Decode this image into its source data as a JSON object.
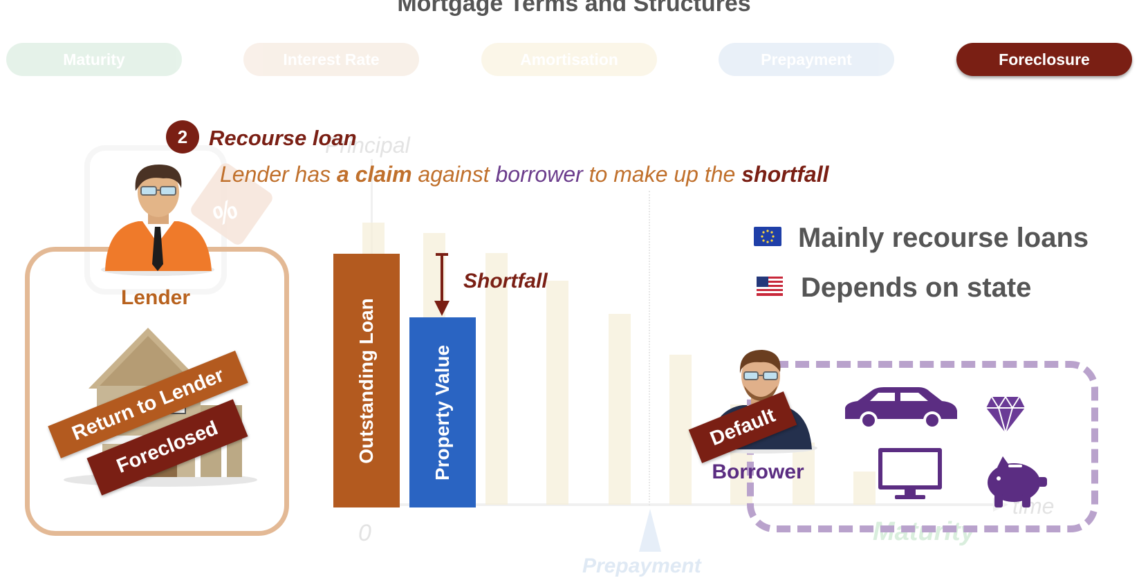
{
  "title": "Mortgage Terms and Structures",
  "tabs": [
    {
      "label": "Maturity",
      "color": "#8ec9a0",
      "active": false
    },
    {
      "label": "Interest Rate",
      "color": "#e3bc9c",
      "active": false
    },
    {
      "label": "Amortisation",
      "color": "#eedb9c",
      "active": false
    },
    {
      "label": "Prepayment",
      "color": "#9fbde0",
      "active": false
    },
    {
      "label": "Foreclosure",
      "color": "#7a1f14",
      "active": true
    }
  ],
  "section": {
    "step_number": "2",
    "heading": "Recourse loan",
    "sentence": {
      "part1": "Lender has ",
      "claim": "a claim",
      "part2": " against ",
      "borrower": "borrower",
      "part3": " to make up the ",
      "shortfall": "shortfall"
    }
  },
  "lender": {
    "label": "Lender",
    "label_color": "#b8621e",
    "stamps": {
      "return": "Return to Lender",
      "foreclosed": "Foreclosed"
    }
  },
  "bars": {
    "outstanding_loan": {
      "label": "Outstanding Loan",
      "color": "#b35a1f"
    },
    "property_value": {
      "label": "Property Value",
      "color": "#2a64c2"
    },
    "shortfall_label": "Shortfall"
  },
  "notes": [
    {
      "flag": "eu-flag-icon",
      "text": "Mainly recourse loans"
    },
    {
      "flag": "us-flag-icon",
      "text": "Depends on state"
    }
  ],
  "borrower": {
    "label": "Borrower",
    "label_color": "#5b2d82",
    "stamp": "Default",
    "assets": [
      "car-icon",
      "diamond-icon",
      "monitor-icon",
      "piggy-bank-icon"
    ]
  },
  "background_ghost": {
    "principal_label": "Principal",
    "zero_label": "0",
    "time_label": "time",
    "maturity_label": "Maturity",
    "prepayment_label": "Prepayment"
  }
}
